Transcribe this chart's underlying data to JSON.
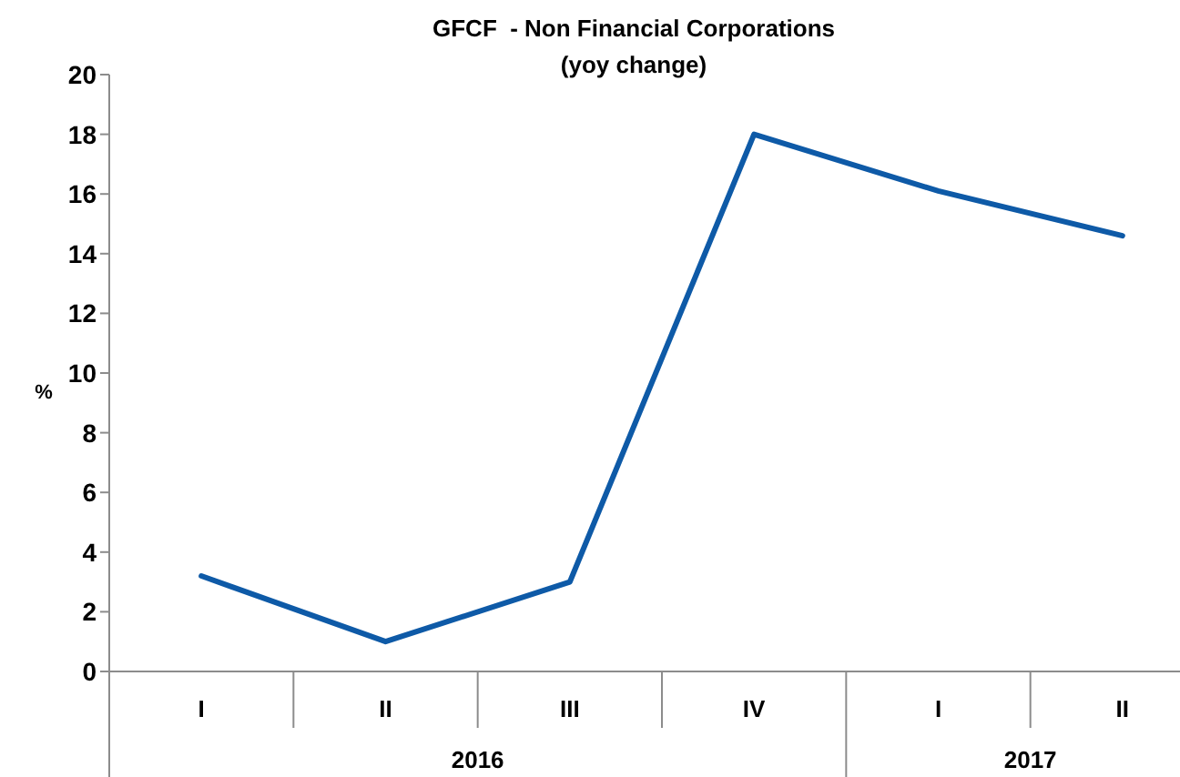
{
  "chart_data": {
    "type": "line",
    "title": "GFCF  - Non Financial Corporations",
    "subtitle": "(yoy change)",
    "ylabel": "%",
    "categories": [
      "I",
      "II",
      "III",
      "IV",
      "I",
      "II"
    ],
    "series": [
      {
        "color": "#0e5aa7",
        "values": [
          3.2,
          1.0,
          3.0,
          18.0,
          16.1,
          14.6
        ]
      }
    ],
    "ylim": [
      0,
      20
    ],
    "yticks": [
      0,
      2,
      4,
      6,
      8,
      10,
      12,
      14,
      16,
      18,
      20
    ],
    "annotations": [
      "2016",
      "2017"
    ]
  }
}
